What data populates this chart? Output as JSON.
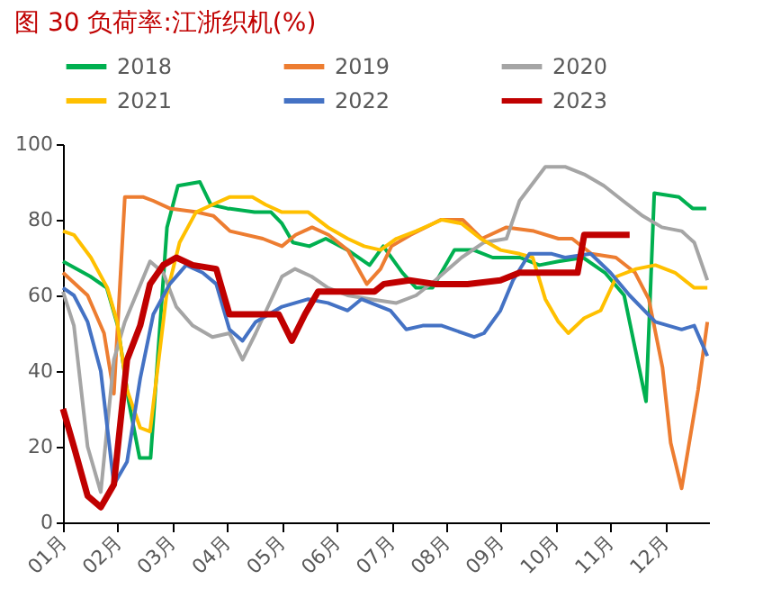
{
  "chart_data": {
    "type": "line",
    "title": "图 30 负荷率:江浙织机(%)",
    "xlim": [
      1,
      12.8
    ],
    "xticks": [
      {
        "value": 1,
        "label": "01月"
      },
      {
        "value": 2,
        "label": "02月"
      },
      {
        "value": 3,
        "label": "03月"
      },
      {
        "value": 4,
        "label": "04月"
      },
      {
        "value": 5,
        "label": "05月"
      },
      {
        "value": 6,
        "label": "06月"
      },
      {
        "value": 7,
        "label": "07月"
      },
      {
        "value": 8,
        "label": "08月"
      },
      {
        "value": 9,
        "label": "09月"
      },
      {
        "value": 10,
        "label": "10月"
      },
      {
        "value": 11,
        "label": "11月"
      },
      {
        "value": 12,
        "label": "12月"
      }
    ],
    "ylim": [
      0,
      100
    ],
    "yticks": [
      0,
      20,
      40,
      60,
      80,
      100
    ],
    "grid": false,
    "legend": "top",
    "marker": "none",
    "line_style": "solid",
    "series": [
      {
        "name": "2018",
        "color": "#00b050",
        "x": [
          1,
          1.5,
          1.8,
          2,
          2.2,
          2.4,
          2.6,
          2.9,
          3.1,
          3.5,
          3.7,
          4,
          4.5,
          4.8,
          5,
          5.2,
          5.5,
          5.8,
          6.2,
          6.6,
          6.85,
          7.2,
          7.45,
          7.75,
          8.15,
          8.5,
          8.85,
          9.35,
          9.7,
          10.05,
          10.5,
          10.9,
          11.25,
          11.65,
          11.8,
          12.25,
          12.5,
          12.75
        ],
        "values": [
          69,
          65,
          62,
          52,
          32,
          17,
          17,
          78,
          89,
          90,
          84,
          83,
          82,
          82,
          79,
          74,
          73,
          75,
          72,
          68,
          73,
          66,
          62,
          62,
          72,
          72,
          70,
          70,
          68,
          69,
          70,
          66,
          60,
          32,
          87,
          86,
          83,
          83
        ]
      },
      {
        "name": "2019",
        "color": "#ed7d31",
        "x": [
          1,
          1.45,
          1.75,
          1.93,
          2.13,
          2.47,
          2.65,
          2.95,
          3.45,
          3.75,
          4.05,
          4.65,
          5,
          5.25,
          5.55,
          5.85,
          6.2,
          6.55,
          6.8,
          7,
          7.35,
          7.9,
          8.3,
          8.65,
          9.1,
          9.6,
          10.05,
          10.3,
          10.65,
          11.1,
          11.45,
          11.7,
          11.95,
          12.1,
          12.3,
          12.6,
          12.77
        ],
        "values": [
          66,
          60,
          50,
          34,
          86,
          86,
          85,
          83,
          82,
          81,
          77,
          75,
          73,
          76,
          78,
          76,
          72,
          63,
          67,
          73,
          76,
          80,
          80,
          75,
          78,
          77,
          75,
          75,
          71,
          70,
          66,
          59,
          41,
          21,
          9,
          35,
          53
        ]
      },
      {
        "name": "2020",
        "color": "#a5a5a5",
        "x": [
          1,
          1.2,
          1.45,
          1.69,
          1.93,
          2.13,
          2.59,
          2.83,
          3.07,
          3.37,
          3.73,
          4.04,
          4.28,
          4.52,
          5,
          5.24,
          5.54,
          5.84,
          6.2,
          6.62,
          7.09,
          7.45,
          7.8,
          8.28,
          8.69,
          9.1,
          9.34,
          9.81,
          10.17,
          10.52,
          10.88,
          11.23,
          11.59,
          11.94,
          12.3,
          12.53,
          12.77
        ],
        "values": [
          61,
          52,
          20,
          8,
          43,
          53,
          69,
          66,
          57,
          52,
          49,
          50,
          43,
          50,
          65,
          67,
          65,
          62,
          60,
          59,
          58,
          60,
          64,
          70,
          74,
          75,
          85,
          94,
          94,
          92,
          89,
          85,
          81,
          78,
          77,
          74,
          64
        ]
      },
      {
        "name": "2021",
        "color": "#ffc000",
        "x": [
          1,
          1.2,
          1.51,
          1.81,
          1.99,
          2.17,
          2.41,
          2.59,
          2.89,
          3.13,
          3.43,
          3.73,
          4.04,
          4.46,
          4.7,
          5,
          5.48,
          5.84,
          6.2,
          6.5,
          6.8,
          7.09,
          7.45,
          7.92,
          8.28,
          8.63,
          8.99,
          9.34,
          9.58,
          9.81,
          10.05,
          10.23,
          10.52,
          10.82,
          11.11,
          11.47,
          11.82,
          12.18,
          12.53,
          12.77
        ],
        "values": [
          77,
          76,
          70,
          62,
          53,
          35,
          25,
          24,
          60,
          74,
          82,
          84,
          86,
          86,
          84,
          82,
          82,
          78,
          75,
          73,
          72,
          75,
          77,
          80,
          79,
          75,
          72,
          71,
          70,
          59,
          53,
          50,
          54,
          56,
          65,
          67,
          68,
          66,
          62,
          62
        ]
      },
      {
        "name": "2022",
        "color": "#4472c4",
        "x": [
          1,
          1.2,
          1.45,
          1.69,
          1.93,
          2.17,
          2.41,
          2.65,
          2.95,
          3.25,
          3.55,
          3.8,
          4.04,
          4.28,
          4.52,
          5,
          5.48,
          5.84,
          6.2,
          6.45,
          6.98,
          7.27,
          7.57,
          7.92,
          8.51,
          8.69,
          8.99,
          9.22,
          9.52,
          9.93,
          10.17,
          10.64,
          11,
          11.35,
          11.82,
          12.3,
          12.53,
          12.77
        ],
        "values": [
          62,
          60,
          53,
          40,
          10,
          16,
          38,
          55,
          63,
          68,
          66,
          63,
          51,
          48,
          53,
          57,
          59,
          58,
          56,
          59,
          56,
          51,
          52,
          52,
          49,
          50,
          56,
          64,
          71,
          71,
          70,
          71,
          66,
          60,
          53,
          51,
          52,
          44
        ]
      },
      {
        "name": "2023",
        "color": "#c00000",
        "x": [
          1,
          1.2,
          1.45,
          1.69,
          1.93,
          2.17,
          2.41,
          2.59,
          2.83,
          3.07,
          3.37,
          3.8,
          4.04,
          4.94,
          5.18,
          5.42,
          5.66,
          6.69,
          6.86,
          7.33,
          7.8,
          8.39,
          8.99,
          9.34,
          10.4,
          10.52,
          11.35
        ],
        "values": [
          30,
          20,
          7,
          4,
          10,
          43,
          52,
          63,
          68,
          70,
          68,
          67,
          55,
          55,
          48,
          55,
          61,
          61,
          63,
          64,
          63,
          63,
          64,
          66,
          66,
          76,
          76
        ]
      }
    ]
  }
}
